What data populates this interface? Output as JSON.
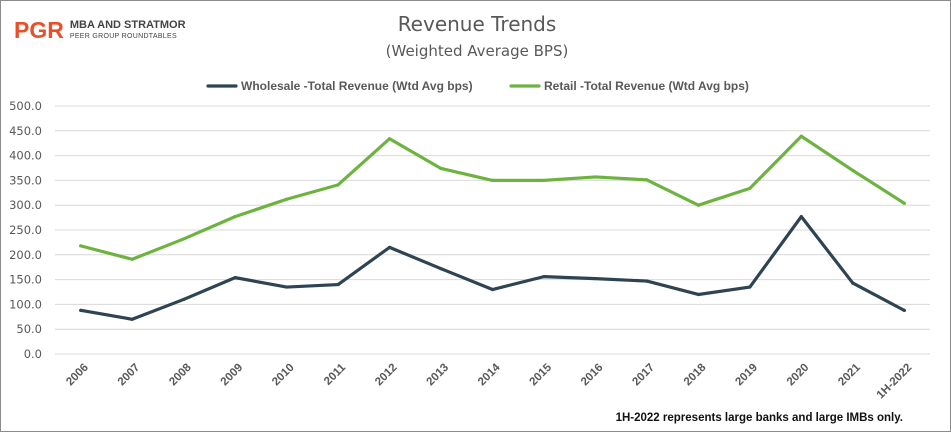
{
  "logo": {
    "mark": "PGR",
    "line1": "MBA AND STRATMOR",
    "line2": "PEER GROUP ROUNDTABLES"
  },
  "footnote": "1H-2022 represents large banks and large IMBs only.",
  "chart_data": {
    "type": "line",
    "title": "Revenue Trends",
    "subtitle": "(Weighted Average BPS)",
    "xlabel": "",
    "ylabel": "",
    "categories": [
      "2006",
      "2007",
      "2008",
      "2009",
      "2010",
      "2011",
      "2012",
      "2013",
      "2014",
      "2015",
      "2016",
      "2017",
      "2018",
      "2019",
      "2020",
      "2021",
      "1H-2022"
    ],
    "series": [
      {
        "name": "Wholesale -Total Revenue (Wtd Avg bps)",
        "color": "#2e4453",
        "values": [
          88,
          70,
          110,
          154,
          135,
          140,
          215,
          172,
          130,
          156,
          152,
          147,
          120,
          135,
          277,
          143,
          88
        ]
      },
      {
        "name": "Retail -Total Revenue (Wtd Avg bps)",
        "color": "#6db33f",
        "values": [
          218,
          191,
          232,
          277,
          312,
          341,
          434,
          374,
          350,
          350,
          357,
          351,
          300,
          334,
          439,
          370,
          304
        ]
      }
    ],
    "ylim": [
      0,
      500
    ],
    "yticks": [
      "0.0",
      "50.0",
      "100.0",
      "150.0",
      "200.0",
      "250.0",
      "300.0",
      "350.0",
      "400.0",
      "450.0",
      "500.0"
    ],
    "grid": true,
    "legend_position": "top-center"
  }
}
